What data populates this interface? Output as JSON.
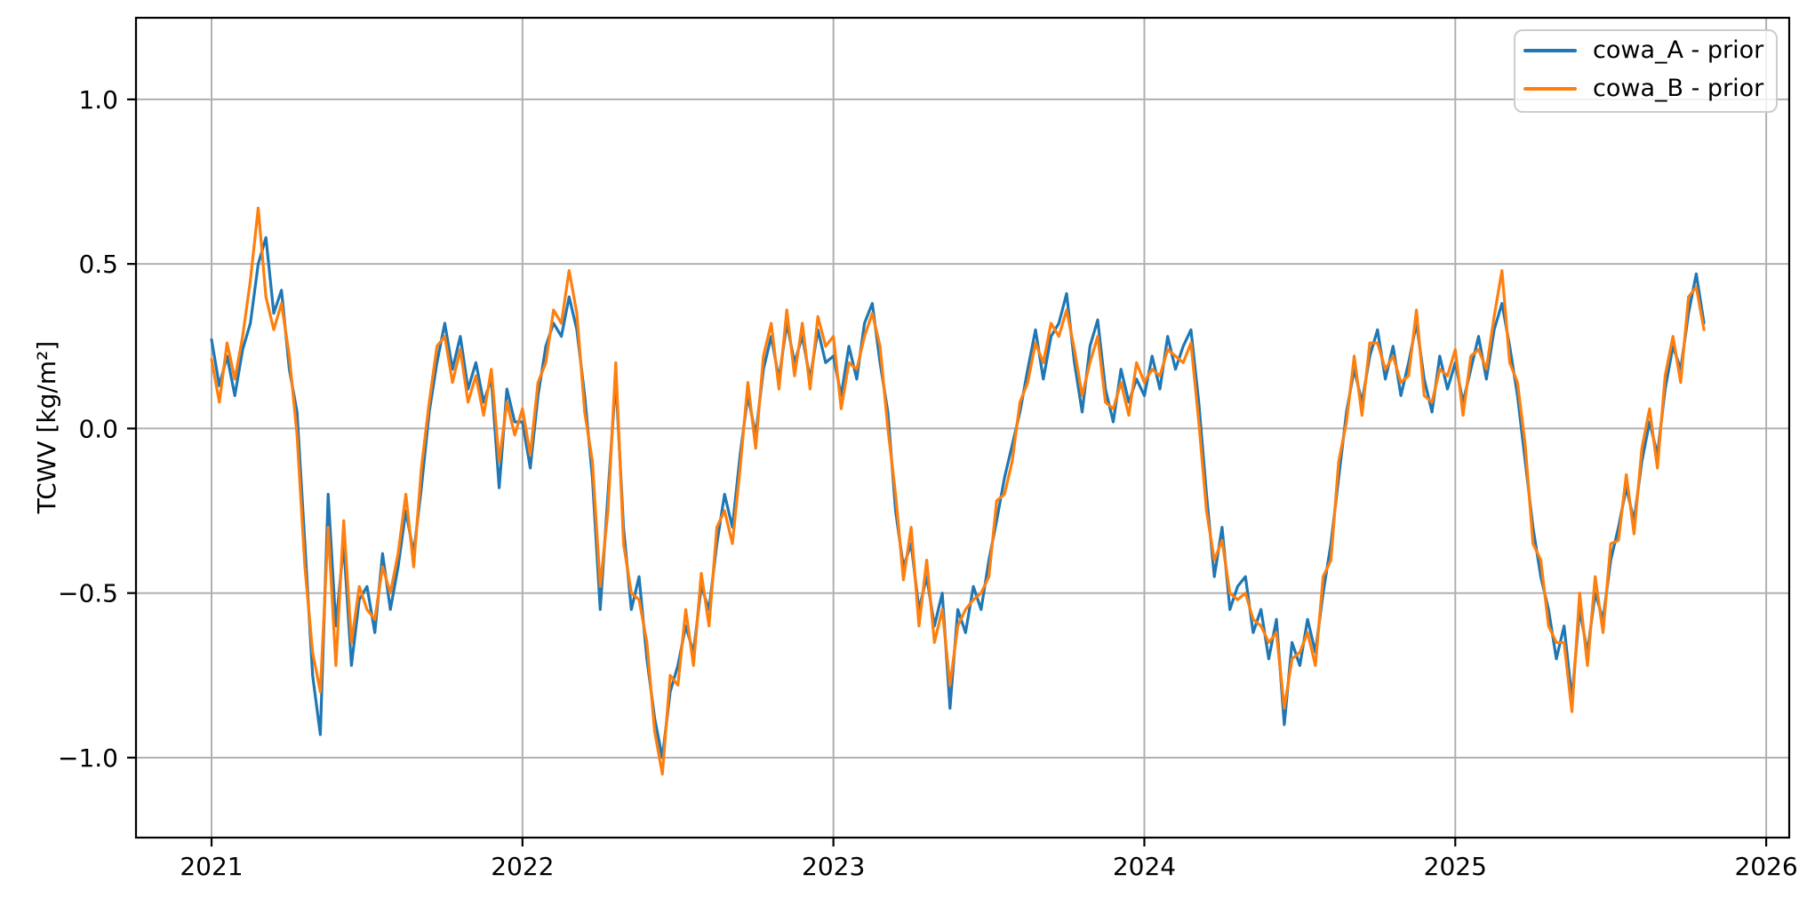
{
  "figure": {
    "background": "#ffffff",
    "axis_color": "#000000"
  },
  "chart_data": {
    "type": "line",
    "title": "",
    "xlabel": "",
    "ylabel": "TCWV [kg/m²]",
    "xlim": [
      2020.757,
      2026.074
    ],
    "ylim": [
      -1.243,
      1.248
    ],
    "grid": true,
    "grid_color": "#b0b0b0",
    "legend_position": "upper right",
    "xticks": {
      "values": [
        2021,
        2022,
        2023,
        2024,
        2025,
        2026
      ],
      "labels": [
        "2021",
        "2022",
        "2023",
        "2024",
        "2025",
        "2026"
      ]
    },
    "yticks": {
      "values": [
        1.0,
        0.5,
        0.0,
        -0.5,
        -1.0
      ],
      "labels": [
        "1.0",
        "0.5",
        "0.0",
        "−0.5",
        "−1.0"
      ]
    },
    "x_start": 2021.0,
    "x_step": 0.025,
    "series": [
      {
        "name": "cowa_A - prior",
        "color": "#1f77b4",
        "values": [
          0.27,
          0.13,
          0.22,
          0.1,
          0.24,
          0.32,
          0.5,
          0.58,
          0.35,
          0.42,
          0.18,
          0.05,
          -0.35,
          -0.75,
          -0.93,
          -0.2,
          -0.6,
          -0.35,
          -0.72,
          -0.52,
          -0.48,
          -0.62,
          -0.38,
          -0.55,
          -0.42,
          -0.25,
          -0.38,
          -0.18,
          0.05,
          0.2,
          0.32,
          0.18,
          0.28,
          0.12,
          0.2,
          0.08,
          0.15,
          -0.18,
          0.12,
          0.02,
          0.02,
          -0.12,
          0.1,
          0.25,
          0.32,
          0.28,
          0.4,
          0.3,
          0.1,
          -0.15,
          -0.55,
          -0.2,
          0.15,
          -0.3,
          -0.55,
          -0.45,
          -0.7,
          -0.88,
          -1.0,
          -0.8,
          -0.72,
          -0.6,
          -0.68,
          -0.48,
          -0.55,
          -0.35,
          -0.2,
          -0.3,
          -0.08,
          0.1,
          -0.02,
          0.18,
          0.28,
          0.15,
          0.32,
          0.2,
          0.28,
          0.15,
          0.3,
          0.2,
          0.22,
          0.1,
          0.25,
          0.15,
          0.32,
          0.38,
          0.2,
          0.05,
          -0.25,
          -0.42,
          -0.35,
          -0.55,
          -0.45,
          -0.6,
          -0.5,
          -0.85,
          -0.55,
          -0.62,
          -0.48,
          -0.55,
          -0.4,
          -0.28,
          -0.15,
          -0.05,
          0.05,
          0.18,
          0.3,
          0.15,
          0.28,
          0.32,
          0.41,
          0.2,
          0.05,
          0.25,
          0.33,
          0.12,
          0.02,
          0.18,
          0.08,
          0.15,
          0.1,
          0.22,
          0.12,
          0.28,
          0.18,
          0.25,
          0.3,
          0.08,
          -0.2,
          -0.45,
          -0.3,
          -0.55,
          -0.48,
          -0.45,
          -0.62,
          -0.55,
          -0.7,
          -0.58,
          -0.9,
          -0.65,
          -0.72,
          -0.58,
          -0.68,
          -0.5,
          -0.35,
          -0.15,
          0.05,
          0.18,
          0.08,
          0.22,
          0.3,
          0.15,
          0.25,
          0.1,
          0.2,
          0.32,
          0.15,
          0.05,
          0.22,
          0.12,
          0.2,
          0.08,
          0.18,
          0.28,
          0.15,
          0.3,
          0.38,
          0.25,
          0.1,
          -0.1,
          -0.3,
          -0.45,
          -0.55,
          -0.7,
          -0.6,
          -0.82,
          -0.55,
          -0.68,
          -0.5,
          -0.58,
          -0.4,
          -0.3,
          -0.18,
          -0.28,
          -0.1,
          0.02,
          -0.08,
          0.12,
          0.25,
          0.18,
          0.35,
          0.47,
          0.32
        ]
      },
      {
        "name": "cowa_B - prior",
        "color": "#ff7f0e",
        "values": [
          0.21,
          0.08,
          0.26,
          0.15,
          0.28,
          0.45,
          0.67,
          0.4,
          0.3,
          0.38,
          0.22,
          -0.02,
          -0.42,
          -0.68,
          -0.8,
          -0.3,
          -0.72,
          -0.28,
          -0.65,
          -0.48,
          -0.55,
          -0.58,
          -0.42,
          -0.5,
          -0.38,
          -0.2,
          -0.42,
          -0.12,
          0.08,
          0.25,
          0.28,
          0.14,
          0.24,
          0.08,
          0.16,
          0.04,
          0.18,
          -0.1,
          0.08,
          -0.02,
          0.06,
          -0.08,
          0.14,
          0.2,
          0.36,
          0.32,
          0.48,
          0.35,
          0.05,
          -0.1,
          -0.48,
          -0.25,
          0.2,
          -0.35,
          -0.5,
          -0.52,
          -0.65,
          -0.92,
          -1.05,
          -0.75,
          -0.78,
          -0.55,
          -0.72,
          -0.44,
          -0.6,
          -0.3,
          -0.25,
          -0.35,
          -0.12,
          0.14,
          -0.06,
          0.22,
          0.32,
          0.12,
          0.36,
          0.16,
          0.32,
          0.12,
          0.34,
          0.25,
          0.28,
          0.06,
          0.2,
          0.18,
          0.28,
          0.35,
          0.25,
          0.0,
          -0.2,
          -0.46,
          -0.3,
          -0.6,
          -0.4,
          -0.65,
          -0.55,
          -0.78,
          -0.6,
          -0.55,
          -0.52,
          -0.5,
          -0.45,
          -0.22,
          -0.2,
          -0.1,
          0.08,
          0.14,
          0.26,
          0.2,
          0.32,
          0.28,
          0.36,
          0.24,
          0.1,
          0.2,
          0.28,
          0.08,
          0.06,
          0.14,
          0.04,
          0.2,
          0.14,
          0.18,
          0.16,
          0.24,
          0.22,
          0.2,
          0.26,
          0.02,
          -0.25,
          -0.4,
          -0.34,
          -0.5,
          -0.52,
          -0.5,
          -0.58,
          -0.6,
          -0.65,
          -0.62,
          -0.85,
          -0.7,
          -0.68,
          -0.62,
          -0.72,
          -0.45,
          -0.4,
          -0.1,
          0.02,
          0.22,
          0.04,
          0.26,
          0.26,
          0.18,
          0.22,
          0.14,
          0.16,
          0.36,
          0.1,
          0.08,
          0.18,
          0.16,
          0.24,
          0.04,
          0.22,
          0.24,
          0.18,
          0.34,
          0.48,
          0.2,
          0.14,
          -0.05,
          -0.35,
          -0.4,
          -0.6,
          -0.65,
          -0.65,
          -0.86,
          -0.5,
          -0.72,
          -0.45,
          -0.62,
          -0.35,
          -0.34,
          -0.14,
          -0.32,
          -0.06,
          0.06,
          -0.12,
          0.16,
          0.28,
          0.14,
          0.4,
          0.43,
          0.3
        ]
      }
    ]
  }
}
